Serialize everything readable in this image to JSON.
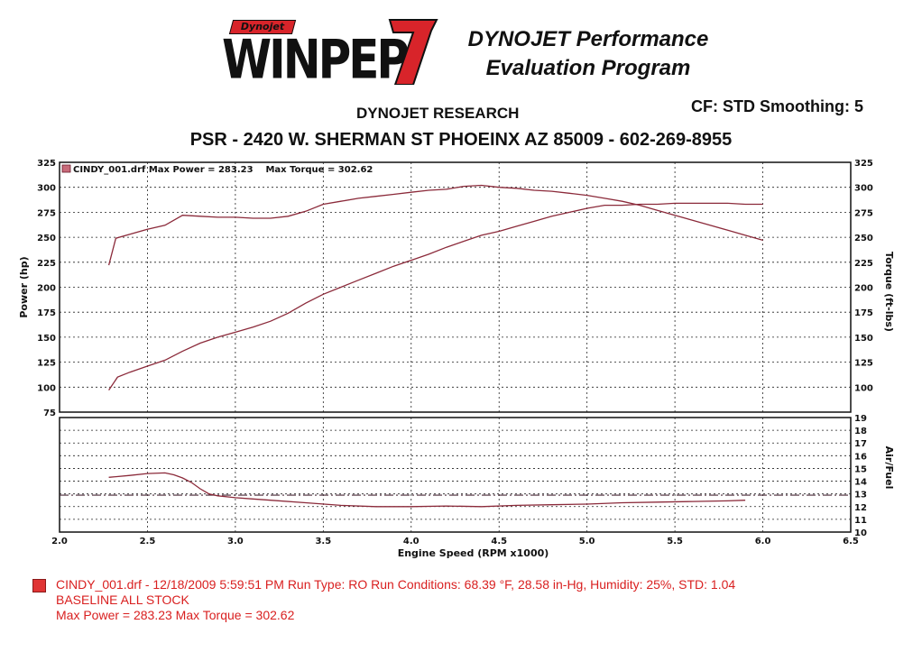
{
  "header": {
    "logo_small": "Dynojet",
    "logo_main": "WINPEP",
    "logo_number": "7",
    "brand_line1": "DYNOJET Performance",
    "brand_line2": "Evaluation Program",
    "cf_info": "CF: STD  Smoothing: 5",
    "research": "DYNOJET RESEARCH",
    "address": "PSR - 2420 W. SHERMAN ST PHOEINX AZ 85009 - 602-269-8955"
  },
  "legend": {
    "text": "CINDY_001.drf Max Power = 283.23    Max Torque = 302.62"
  },
  "footer": {
    "line1": "CINDY_001.drf - 12/18/2009 5:59:51 PM  Run Type: RO  Run Conditions: 68.39 °F, 28.58 in-Hg,  Humidity:  25%, STD: 1.04",
    "line2": "BASELINE ALL STOCK",
    "line3": "Max Power = 283.23  Max Torque = 302.62"
  },
  "colors": {
    "curve": "#8b2a3a",
    "reference": "#4a2a38",
    "footer_text": "#d92020"
  },
  "chart_data": [
    {
      "type": "line",
      "xlabel": "",
      "ylabel": "Power (hp)",
      "ylabel_right": "Torque (ft-lbs)",
      "xlim": [
        2.0,
        6.5
      ],
      "ylim": [
        75,
        325
      ],
      "ylim_right": [
        75,
        325
      ],
      "x_ticks": [
        2.0,
        2.5,
        3.0,
        3.5,
        4.0,
        4.5,
        5.0,
        5.5,
        6.0,
        6.5
      ],
      "y_ticks": [
        75,
        100,
        125,
        150,
        175,
        200,
        225,
        250,
        275,
        300,
        325
      ],
      "y_ticks_right": [
        100,
        125,
        150,
        175,
        200,
        225,
        250,
        275,
        300,
        325
      ],
      "grid": true,
      "legend_position": "top-left",
      "series": [
        {
          "name": "Power",
          "axis": "left",
          "x": [
            2.28,
            2.33,
            2.4,
            2.5,
            2.6,
            2.7,
            2.8,
            2.9,
            3.0,
            3.1,
            3.2,
            3.3,
            3.4,
            3.5,
            3.6,
            3.7,
            3.8,
            3.9,
            4.0,
            4.1,
            4.2,
            4.3,
            4.4,
            4.5,
            4.6,
            4.7,
            4.8,
            4.9,
            5.0,
            5.1,
            5.2,
            5.3,
            5.4,
            5.5,
            5.6,
            5.7,
            5.8,
            5.9,
            6.0
          ],
          "y": [
            97,
            110,
            115,
            121,
            127,
            136,
            144,
            150,
            155,
            160,
            166,
            174,
            184,
            193,
            200,
            207,
            214,
            221,
            227,
            233,
            240,
            246,
            252,
            256,
            261,
            266,
            271,
            275,
            279,
            282,
            282,
            283,
            283,
            284,
            284,
            284,
            284,
            283,
            283
          ]
        },
        {
          "name": "Torque",
          "axis": "right",
          "x": [
            2.28,
            2.32,
            2.4,
            2.5,
            2.6,
            2.7,
            2.8,
            2.9,
            3.0,
            3.1,
            3.2,
            3.3,
            3.4,
            3.5,
            3.6,
            3.7,
            3.8,
            3.9,
            4.0,
            4.1,
            4.2,
            4.3,
            4.4,
            4.5,
            4.6,
            4.7,
            4.8,
            4.9,
            5.0,
            5.1,
            5.2,
            5.3,
            5.4,
            5.5,
            5.6,
            5.7,
            5.8,
            5.9,
            6.0
          ],
          "y": [
            222,
            249,
            253,
            258,
            262,
            272,
            271,
            270,
            270,
            269,
            269,
            271,
            276,
            283,
            286,
            289,
            291,
            293,
            295,
            297,
            298,
            301,
            302,
            300,
            299,
            297,
            296,
            294,
            292,
            289,
            286,
            282,
            277,
            272,
            267,
            262,
            257,
            252,
            247
          ]
        }
      ]
    },
    {
      "type": "line",
      "xlabel": "Engine Speed (RPM x1000)",
      "ylabel": "",
      "ylabel_right": "Air/Fuel",
      "xlim": [
        2.0,
        6.5
      ],
      "ylim": [
        10,
        19
      ],
      "x_ticks": [
        2.0,
        2.5,
        3.0,
        3.5,
        4.0,
        4.5,
        5.0,
        5.5,
        6.0,
        6.5
      ],
      "y_ticks_right": [
        10,
        11,
        12,
        13,
        14,
        15,
        16,
        17,
        18,
        19
      ],
      "reference_line": 12.9,
      "grid": true,
      "series": [
        {
          "name": "Air/Fuel",
          "x": [
            2.28,
            2.4,
            2.5,
            2.6,
            2.65,
            2.7,
            2.75,
            2.8,
            2.85,
            2.9,
            3.0,
            3.1,
            3.2,
            3.4,
            3.6,
            3.8,
            4.0,
            4.2,
            4.4,
            4.6,
            4.8,
            5.0,
            5.2,
            5.4,
            5.6,
            5.8,
            5.9
          ],
          "y": [
            14.3,
            14.45,
            14.6,
            14.65,
            14.5,
            14.25,
            13.9,
            13.4,
            13.0,
            12.85,
            12.7,
            12.6,
            12.5,
            12.3,
            12.1,
            12.0,
            12.0,
            12.05,
            12.0,
            12.1,
            12.15,
            12.2,
            12.3,
            12.35,
            12.4,
            12.45,
            12.5
          ]
        }
      ]
    }
  ]
}
